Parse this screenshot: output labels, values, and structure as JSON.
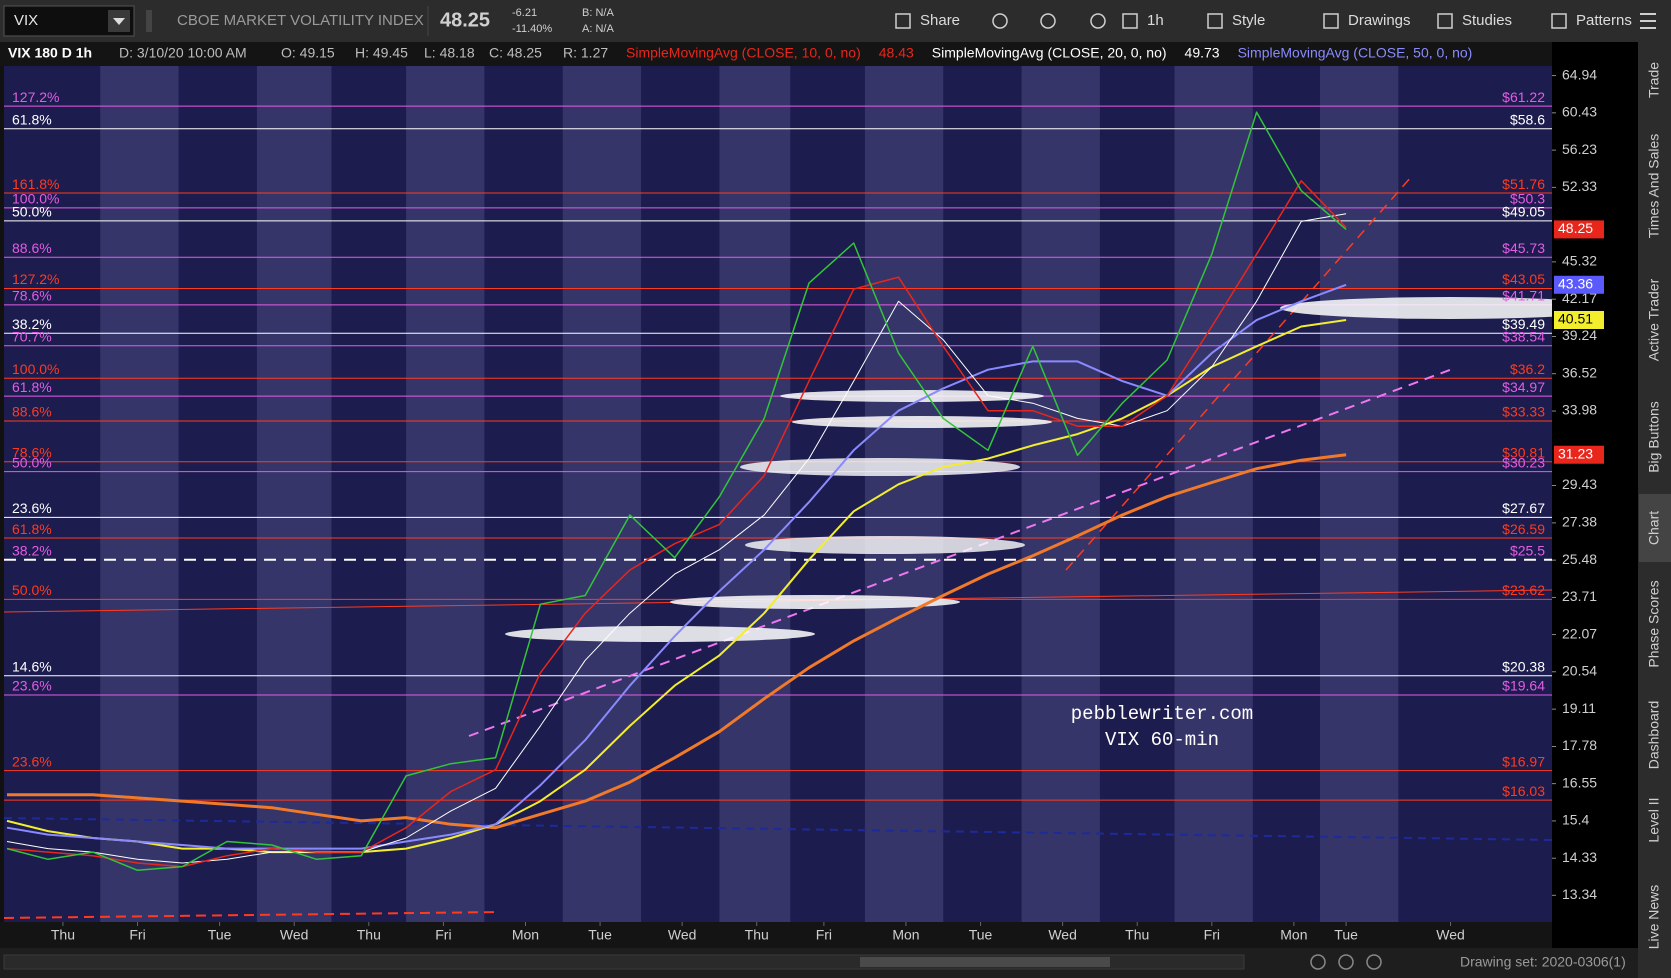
{
  "toolbar": {
    "symbol": "VIX",
    "description": "CBOE MARKET VOLATILITY INDEX",
    "last": "48.25",
    "change": "-6.21",
    "change_pct": "-11.40%",
    "bid": "B: N/A",
    "ask": "A: N/A",
    "buttons": [
      "Share",
      "1h",
      "Style",
      "Drawings",
      "Studies",
      "Patterns"
    ]
  },
  "info_bar": {
    "symbol": "VIX 180 D 1h",
    "items": [
      "D: 3/10/20 10:00 AM",
      "O: 49.15",
      "H: 49.45",
      "L: 48.18",
      "C: 48.25",
      "R: 1.27"
    ]
  },
  "chart_data": {
    "type": "line",
    "log_scale": true,
    "grid": false,
    "ylim": [
      12.67,
      66.15
    ],
    "yticks": [
      64.94,
      60.43,
      56.23,
      52.33,
      45.32,
      42.17,
      39.24,
      36.52,
      33.98,
      29.43,
      27.38,
      25.48,
      23.71,
      22.07,
      20.54,
      19.11,
      17.78,
      16.55,
      15.4,
      14.33,
      13.34
    ],
    "xlim": [
      -0.79,
      19.96
    ],
    "xticks": [
      {
        "value": 0,
        "label": "Thu"
      },
      {
        "value": 1,
        "label": "Fri"
      },
      {
        "value": 2.1,
        "label": "Tue"
      },
      {
        "value": 3.1,
        "label": "Wed"
      },
      {
        "value": 4.1,
        "label": "Thu"
      },
      {
        "value": 5.1,
        "label": "Fri"
      },
      {
        "value": 6.2,
        "label": "Mon"
      },
      {
        "value": 7.2,
        "label": "Tue"
      },
      {
        "value": 8.3,
        "label": "Wed"
      },
      {
        "value": 9.3,
        "label": "Thu"
      },
      {
        "value": 10.2,
        "label": "Fri"
      },
      {
        "value": 11.3,
        "label": "Mon"
      },
      {
        "value": 12.3,
        "label": "Tue"
      },
      {
        "value": 13.4,
        "label": "Wed"
      },
      {
        "value": 14.4,
        "label": "Thu"
      },
      {
        "value": 15.4,
        "label": "Fri"
      },
      {
        "value": 16.5,
        "label": "Mon"
      },
      {
        "value": 17.2,
        "label": "Tue"
      },
      {
        "value": 18.6,
        "label": "Wed"
      }
    ],
    "x": [
      -0.75,
      -0.2,
      0.4,
      1.0,
      1.6,
      2.2,
      2.8,
      3.4,
      4.0,
      4.6,
      5.2,
      5.8,
      6.4,
      7.0,
      7.6,
      8.2,
      8.8,
      9.4,
      10.0,
      10.6,
      11.2,
      11.8,
      12.4,
      13.0,
      13.6,
      14.2,
      14.8,
      15.4,
      16.0,
      16.6,
      17.2
    ],
    "series": [
      {
        "color": "#f07a2a",
        "width": 3,
        "values": [
          16.2,
          16.2,
          16.2,
          16.1,
          16.0,
          15.9,
          15.8,
          15.6,
          15.4,
          15.5,
          15.3,
          15.2,
          15.6,
          16.0,
          16.6,
          17.4,
          18.3,
          19.5,
          20.7,
          21.8,
          22.8,
          23.8,
          24.8,
          25.7,
          26.7,
          27.8,
          28.8,
          29.6,
          30.4,
          30.9,
          31.23
        ]
      },
      {
        "color": "#f2ee2e",
        "width": 2,
        "values": [
          15.4,
          15.1,
          14.9,
          14.8,
          14.6,
          14.6,
          14.5,
          14.5,
          14.5,
          14.6,
          14.9,
          15.3,
          16.0,
          17.0,
          18.5,
          20.0,
          21.2,
          23.0,
          25.5,
          28.0,
          29.5,
          30.5,
          31.0,
          31.8,
          32.5,
          33.5,
          35.0,
          37.0,
          38.5,
          40.0,
          40.51
        ]
      },
      {
        "name": "SimpleMovingAvg (CLOSE, 50, 0, no)",
        "color": "#8a8aff",
        "width": 2,
        "values": [
          15.2,
          15.0,
          14.9,
          14.8,
          14.7,
          14.6,
          14.6,
          14.6,
          14.6,
          14.8,
          15.0,
          15.3,
          16.5,
          18.0,
          20.0,
          22.0,
          24.0,
          26.0,
          28.5,
          31.5,
          34.0,
          35.5,
          36.8,
          37.4,
          37.4,
          36.0,
          35.0,
          38.0,
          40.5,
          42.0,
          43.36
        ]
      },
      {
        "name": "SimpleMovingAvg (CLOSE, 20, 0, no)",
        "color": "#ffffff",
        "width": 1,
        "last_value": 49.73,
        "values": [
          14.8,
          14.6,
          14.5,
          14.3,
          14.2,
          14.3,
          14.5,
          14.5,
          14.5,
          14.9,
          15.7,
          16.4,
          18.5,
          21.0,
          23.0,
          24.8,
          26.0,
          27.8,
          31.0,
          36.0,
          42.0,
          39.0,
          35.0,
          34.5,
          33.5,
          33.0,
          34.0,
          37.0,
          42.0,
          49.0,
          49.73
        ]
      },
      {
        "name": "SimpleMovingAvg (CLOSE, 10, 0, no)",
        "color": "#e8261c",
        "width": 1.5,
        "last_value": 48.43,
        "values": [
          14.6,
          14.5,
          14.4,
          14.2,
          14.1,
          14.4,
          14.6,
          14.5,
          14.5,
          15.2,
          16.3,
          17.0,
          20.5,
          23.0,
          25.0,
          26.3,
          27.3,
          30.0,
          36.0,
          43.0,
          44.0,
          38.5,
          34.0,
          34.0,
          33.0,
          33.0,
          35.0,
          40.0,
          46.0,
          53.0,
          48.43
        ]
      },
      {
        "color": "#33c43a",
        "width": 1.5,
        "values": [
          14.6,
          14.3,
          14.5,
          14.0,
          14.1,
          14.8,
          14.7,
          14.3,
          14.4,
          16.8,
          17.2,
          17.4,
          23.4,
          23.8,
          27.8,
          25.6,
          28.8,
          33.5,
          43.5,
          47.0,
          38.0,
          33.5,
          31.5,
          38.5,
          31.2,
          34.5,
          37.5,
          46.0,
          60.5,
          52.0,
          48.25
        ]
      }
    ],
    "levels": [
      {
        "value": 61.22,
        "label": "$61.22",
        "ratio": "127.2%",
        "color": "#e55ce5"
      },
      {
        "value": 58.6,
        "label": "$58.6",
        "ratio": "61.8%",
        "color": "#ffffff"
      },
      {
        "value": 51.76,
        "label": "$51.76",
        "ratio": "161.8%",
        "color": "#ff3b1f"
      },
      {
        "value": 50.3,
        "label": "$50.3",
        "ratio": "100.0%",
        "color": "#e55ce5"
      },
      {
        "value": 49.05,
        "label": "$49.05",
        "ratio": "50.0%",
        "color": "#ffffff"
      },
      {
        "value": 45.73,
        "label": "$45.73",
        "ratio": "88.6%",
        "color": "#e55ce5"
      },
      {
        "value": 43.05,
        "label": "$43.05",
        "ratio": "127.2%",
        "color": "#ff3b1f"
      },
      {
        "value": 41.71,
        "label": "$41.71",
        "ratio": "78.6%",
        "color": "#e55ce5"
      },
      {
        "value": 39.49,
        "label": "$39.49",
        "ratio": "38.2%",
        "color": "#ffffff"
      },
      {
        "value": 38.54,
        "label": "$38.54",
        "ratio": "70.7%",
        "color": "#e55ce5"
      },
      {
        "value": 36.2,
        "label": "$36.2",
        "ratio": "100.0%",
        "color": "#ff3b1f"
      },
      {
        "value": 34.97,
        "label": "$34.97",
        "ratio": "61.8%",
        "color": "#e55ce5"
      },
      {
        "value": 33.33,
        "label": "$33.33",
        "ratio": "88.6%",
        "color": "#ff3b1f"
      },
      {
        "value": 30.81,
        "label": "$30.81",
        "ratio": "78.6%",
        "color": "#ff3b1f"
      },
      {
        "value": 30.23,
        "label": "$30.23",
        "ratio": "50.0%",
        "color": "#e55ce5"
      },
      {
        "value": 27.67,
        "label": "$27.67",
        "ratio": "23.6%",
        "color": "#ffffff"
      },
      {
        "value": 26.59,
        "label": "$26.59",
        "ratio": "61.8%",
        "color": "#ff3b1f"
      },
      {
        "value": 25.5,
        "label": "$25.5",
        "ratio": "38.2%",
        "color": "#e55ce5",
        "line_color": "#ffffff",
        "dashed": true
      },
      {
        "value": 23.62,
        "label": "$23.62",
        "ratio": "50.0%",
        "color": "#ff3b1f"
      },
      {
        "value": 20.38,
        "label": "$20.38",
        "ratio": "14.6%",
        "color": "#ffffff"
      },
      {
        "value": 19.64,
        "label": "$19.64",
        "ratio": "23.6%",
        "color": "#e55ce5"
      },
      {
        "value": 16.97,
        "label": "$16.97",
        "ratio": "23.6%",
        "color": "#ff3b1f"
      },
      {
        "value": 16.03,
        "label": "$16.03",
        "color": "#ff3b1f"
      }
    ],
    "price_badges": [
      {
        "value": 48.25,
        "color": "#e8261c",
        "text_color": "#ffffff"
      },
      {
        "value": 43.36,
        "color": "#5a5aff",
        "text_color": "#ffffff"
      },
      {
        "value": 40.51,
        "color": "#f2ee2e",
        "text_color": "#000000"
      },
      {
        "value": 31.23,
        "color": "#e8261c",
        "text_color": "#ffffff"
      }
    ],
    "annotations": [
      "pebblewriter.com",
      "VIX 60-min"
    ]
  },
  "sidebar": {
    "tabs": [
      "Trade",
      "Times And Sales",
      "Active Trader",
      "Big Buttons",
      "Chart",
      "Phase Scores",
      "Dashboard",
      "Level II",
      "Live News"
    ]
  },
  "status_bar": {
    "drawing_set": "Drawing set: 2020-0306(1)"
  }
}
